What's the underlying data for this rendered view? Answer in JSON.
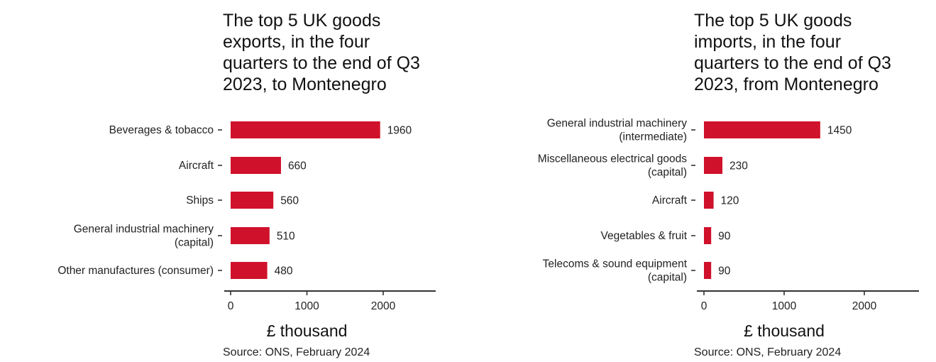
{
  "chart_data": [
    {
      "type": "bar",
      "orientation": "horizontal",
      "title": "The top 5 UK goods\nexports, in the four\nquarters to the end of Q3\n2023, to Montenegro",
      "categories": [
        "Beverages & tobacco",
        "Aircraft",
        "Ships",
        "General industrial machinery\n(capital)",
        "Other manufactures (consumer)"
      ],
      "values": [
        1960,
        660,
        560,
        510,
        480
      ],
      "value_labels": [
        "1960",
        "660",
        "560",
        "510",
        "480"
      ],
      "xlabel": "£ thousand",
      "xlim": [
        0,
        2650
      ],
      "xticks": [
        0,
        1000,
        2000
      ],
      "xtick_labels": [
        "0",
        "1000",
        "2000"
      ],
      "bar_color": "#d0112b",
      "grid": false,
      "source": "Source: ONS, February 2024"
    },
    {
      "type": "bar",
      "orientation": "horizontal",
      "title": "The top 5 UK goods\nimports, in the four\nquarters to the end of Q3\n2023, from Montenegro",
      "categories": [
        "General industrial machinery\n(intermediate)",
        "Miscellaneous electrical goods\n(capital)",
        "Aircraft",
        "Vegetables & fruit",
        "Telecoms & sound equipment\n(capital)"
      ],
      "values": [
        1450,
        230,
        120,
        90,
        90
      ],
      "value_labels": [
        "1450",
        "230",
        "120",
        "90",
        "90"
      ],
      "xlabel": "£ thousand",
      "xlim": [
        0,
        2650
      ],
      "xticks": [
        0,
        1000,
        2000
      ],
      "xtick_labels": [
        "0",
        "1000",
        "2000"
      ],
      "bar_color": "#d0112b",
      "grid": false,
      "source": "Source: ONS, February 2024"
    }
  ]
}
